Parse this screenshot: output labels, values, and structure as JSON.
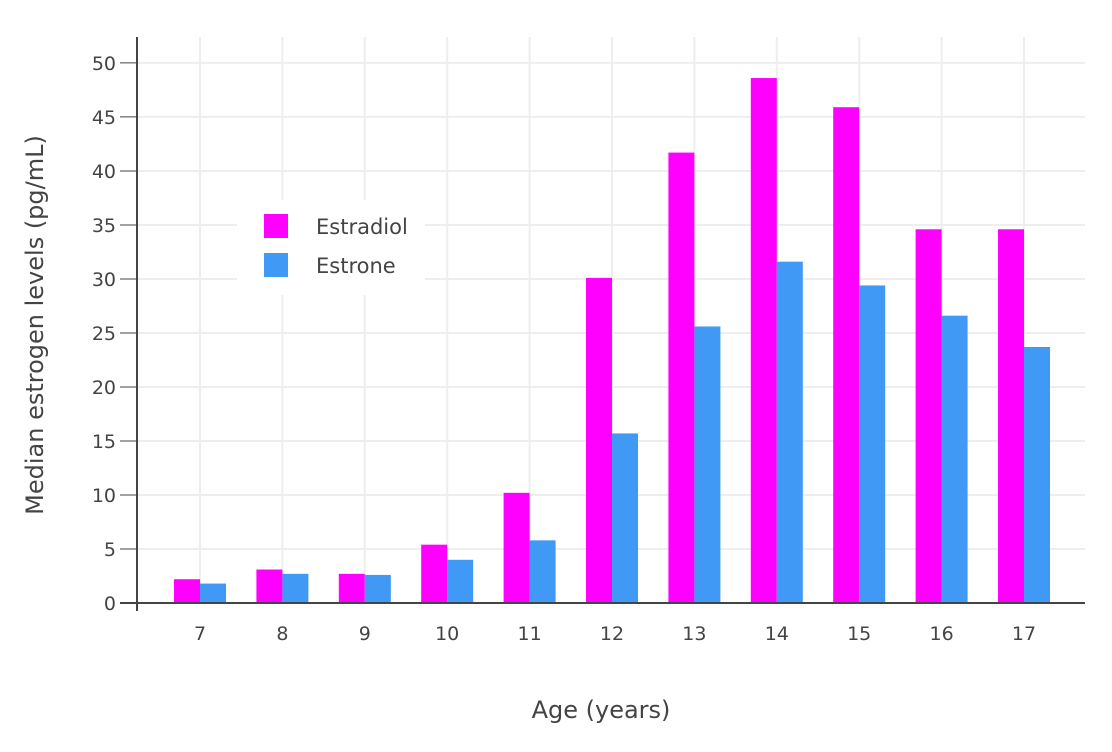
{
  "chart_data": {
    "type": "bar",
    "title": "",
    "xlabel": "Age (years)",
    "ylabel": "Median estrogen levels (pg/mL)",
    "categories": [
      "7",
      "8",
      "9",
      "10",
      "11",
      "12",
      "13",
      "14",
      "15",
      "16",
      "17"
    ],
    "series": [
      {
        "name": "Estradiol",
        "color": "#ff00ff",
        "values": [
          2.2,
          3.1,
          2.7,
          5.4,
          10.2,
          30.1,
          41.7,
          48.6,
          45.9,
          34.6,
          34.6
        ]
      },
      {
        "name": "Estrone",
        "color": "#4099f5",
        "values": [
          1.8,
          2.7,
          2.6,
          4.0,
          5.8,
          15.7,
          25.6,
          31.6,
          29.4,
          26.6,
          23.7
        ]
      }
    ],
    "ylim": [
      0,
      52.4
    ],
    "yticks": [
      0,
      5,
      10,
      15,
      20,
      25,
      30,
      35,
      40,
      45,
      50
    ],
    "grid": true,
    "legend": "upper-left inside plot"
  }
}
